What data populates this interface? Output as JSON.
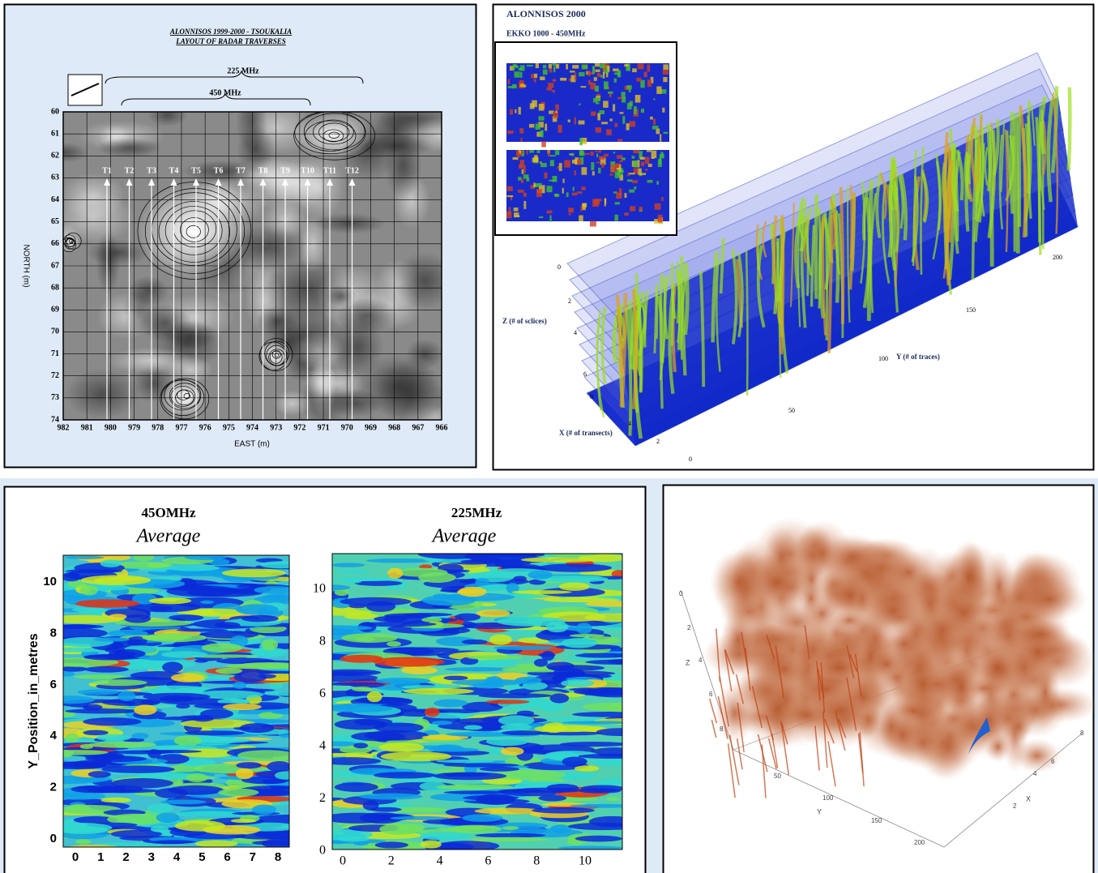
{
  "layout_panel": {
    "title": [
      "ALONNISOS 1999-2000  - TSOUKALIA",
      "LAYOUT OF RADAR TRAVERSES"
    ],
    "band_labels": [
      "225 MHz",
      "450 MHz"
    ],
    "y_label": "NORTH (m)",
    "x_label": "EAST (m)",
    "y_ticks": [
      60,
      61,
      62,
      63,
      64,
      65,
      66,
      67,
      68,
      69,
      70,
      71,
      72,
      73,
      74
    ],
    "x_ticks": [
      982,
      981,
      980,
      979,
      978,
      977,
      976,
      975,
      974,
      973,
      972,
      971,
      970,
      969,
      968,
      967,
      966
    ],
    "traverses": [
      "T1",
      "T2",
      "T3",
      "T4",
      "T5",
      "T6",
      "T7",
      "T8",
      "T9",
      "T10",
      "T11",
      "T12"
    ]
  },
  "cube_panel": {
    "title": "ALONNISOS 2000",
    "subtitle": "EKKO 1000 - 450MHz",
    "z_label": "Z (# of sclices)",
    "y_label": "Y (# of traces)",
    "x_label": "X (# of transects)",
    "z_ticks": [
      0,
      2,
      4,
      6,
      8
    ],
    "y_ticks": [
      50,
      100,
      150,
      200
    ],
    "x_ticks": [
      4,
      2,
      0
    ]
  },
  "average_panel": {
    "y_label": "Y_Position_in_metres",
    "maps": [
      {
        "frequency": "45OMHz",
        "subtitle": "Average",
        "y_ticks": [
          0,
          2,
          4,
          6,
          8,
          10
        ],
        "x_ticks": [
          0,
          1,
          2,
          3,
          4,
          5,
          6,
          7,
          8
        ]
      },
      {
        "frequency": "225MHz",
        "subtitle": "Average",
        "y_ticks": [
          0,
          2,
          4,
          6,
          8,
          10
        ],
        "x_ticks": [
          0,
          2,
          4,
          6,
          8,
          10
        ]
      }
    ]
  },
  "volume_panel": {
    "z_label": "Z",
    "y_label": "Y",
    "x_label": "X",
    "z_ticks": [
      0,
      2,
      4,
      6,
      8
    ],
    "y_ticks": [
      50,
      100,
      150,
      200
    ],
    "x_ticks": [
      2,
      4,
      6,
      8
    ]
  }
}
